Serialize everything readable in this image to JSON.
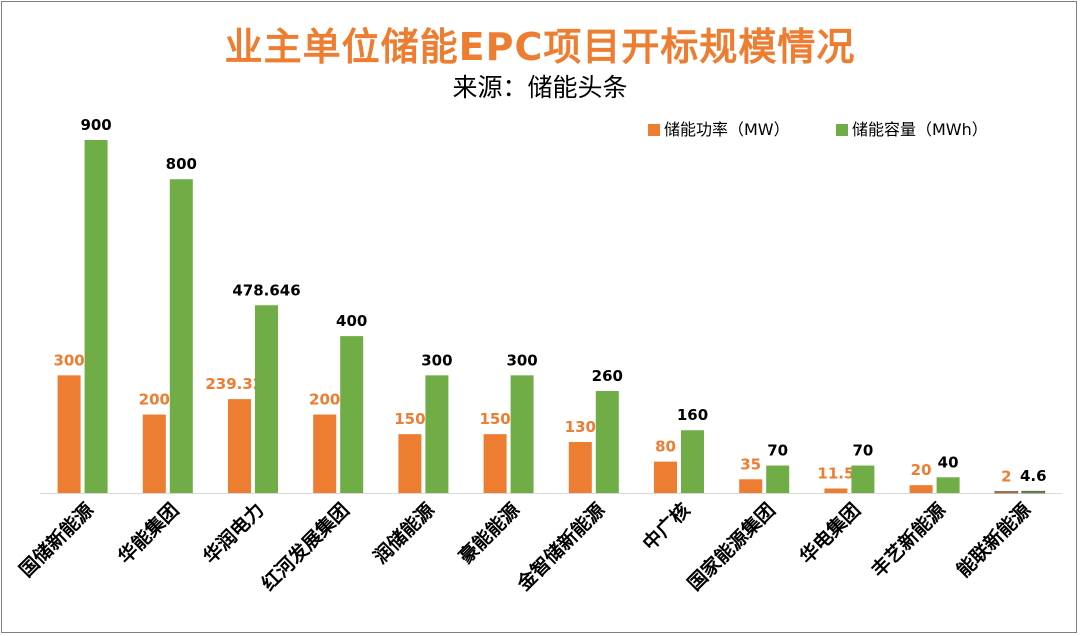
{
  "chart_data": {
    "type": "bar",
    "title": "业主单位储能EPC项目开标规模情况",
    "subtitle": "来源：储能头条",
    "categories": [
      "国储新能源",
      "华能集团",
      "华润电力",
      "红河发展集团",
      "润储能源",
      "豪能能源",
      "金智储新能源",
      "中广核",
      "国家能源集团",
      "华电集团",
      "丰艺新能源",
      "能联新能源"
    ],
    "series": [
      {
        "name": "储能功率（MW）",
        "color": "#ed7d31",
        "labelColor": "#ed7d31",
        "values": [
          300,
          200,
          239.323,
          200,
          150,
          150,
          130,
          80,
          35,
          11.5,
          20,
          2
        ],
        "labels": [
          "300",
          "200",
          "239.323",
          "200",
          "150",
          "150",
          "130",
          "80",
          "35",
          "11.5",
          "20",
          "2"
        ]
      },
      {
        "name": "储能容量（MWh）",
        "color": "#70ad47",
        "labelColor": "#000000",
        "values": [
          900,
          800,
          478.646,
          400,
          300,
          300,
          260,
          160,
          70,
          70,
          40,
          4.6
        ],
        "labels": [
          "900",
          "800",
          "478.646",
          "400",
          "300",
          "300",
          "260",
          "160",
          "70",
          "70",
          "40",
          "4.6"
        ]
      }
    ],
    "ylim": [
      0,
      900
    ],
    "legend_position": "top-right",
    "grid": false
  }
}
